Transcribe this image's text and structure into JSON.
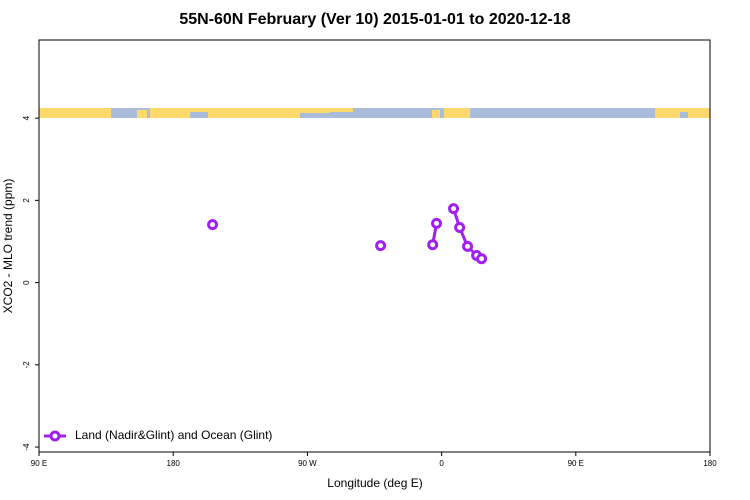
{
  "chart_data": {
    "type": "line",
    "title": "55N-60N February (Ver 10)   2015-01-01 to 2020-12-18",
    "x_label": "Longitude (deg E)",
    "y_label": "XCO2 - MLO trend (ppm)",
    "xlim": [
      -270,
      180
    ],
    "xticks": [
      {
        "value": -270,
        "label": "90 E"
      },
      {
        "value": -180,
        "label": "180"
      },
      {
        "value": -90,
        "label": "90 W"
      },
      0,
      {
        "value": 90,
        "label": "90 E"
      },
      {
        "value": 180,
        "label": "180"
      }
    ],
    "ylim": [
      -4.12,
      5.9
    ],
    "yticks": [
      -4,
      -2,
      0,
      2,
      4
    ],
    "legend": "bottom-left",
    "series": [
      {
        "name": "Land (Nadir&Glint) and Ocean (Glint)",
        "color": "#a020f0",
        "x": [
          -153.6,
          null,
          -40.9,
          null,
          -6.0,
          -3.4,
          null,
          8.0,
          12.1,
          17.4,
          23.5,
          26.8
        ],
        "values": [
          1.41,
          null,
          0.9,
          null,
          0.92,
          1.44,
          null,
          1.8,
          1.34,
          0.88,
          0.66,
          0.58
        ]
      }
    ]
  }
}
